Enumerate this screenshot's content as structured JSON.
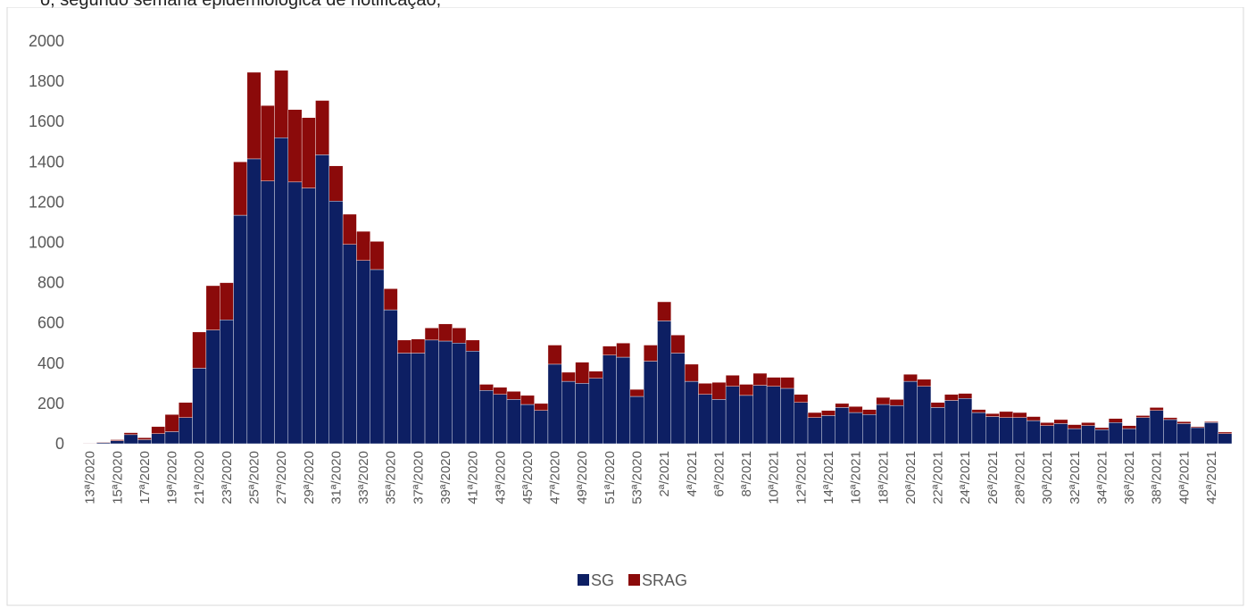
{
  "chart_data": {
    "type": "stacked-bar",
    "title": "o, segundo semana epidemiológica de notificação,",
    "categories": [
      "13ª/2020",
      null,
      "15ª/2020",
      null,
      "17ª/2020",
      null,
      "19ª/2020",
      null,
      "21ª/2020",
      null,
      "23ª/2020",
      null,
      "25ª/2020",
      null,
      "27ª/2020",
      null,
      "29ª/2020",
      null,
      "31ª/2020",
      null,
      "33ª/2020",
      null,
      "35ª/2020",
      null,
      "37ª/2020",
      null,
      "39ª/2020",
      null,
      "41ª/2020",
      null,
      "43ª/2020",
      null,
      "45ª/2020",
      null,
      "47ª/2020",
      null,
      "49ª/2020",
      null,
      "51ª/2020",
      null,
      "53ª/2020",
      null,
      "2ª/2021",
      null,
      "4ª/2021",
      null,
      "6ª/2021",
      null,
      "8ª/2021",
      null,
      "10ª/2021",
      null,
      "12ª/2021",
      null,
      "14ª/2021",
      null,
      "16ª/2021",
      null,
      "18ª/2021",
      null,
      "20ª/2021",
      null,
      "22ª/2021",
      null,
      "24ª/2021",
      null,
      "26ª/2021",
      null,
      "28ª/2021",
      null,
      "30ª/2021",
      null,
      "32ª/2021",
      null,
      "34ª/2021",
      null,
      "36ª/2021",
      null,
      "38ª/2021",
      null,
      "40ª/2021",
      null,
      "42ª/2021",
      null
    ],
    "series": [
      {
        "name": "SG",
        "color": "#0d1f63",
        "values": [
          2,
          5,
          15,
          45,
          20,
          50,
          60,
          130,
          375,
          565,
          615,
          1135,
          1415,
          1305,
          1520,
          1300,
          1270,
          1435,
          1205,
          990,
          910,
          865,
          665,
          450,
          450,
          515,
          510,
          500,
          460,
          265,
          245,
          220,
          195,
          165,
          395,
          310,
          300,
          325,
          440,
          430,
          235,
          410,
          610,
          450,
          310,
          245,
          220,
          285,
          240,
          290,
          285,
          275,
          205,
          130,
          140,
          180,
          155,
          145,
          195,
          190,
          310,
          285,
          180,
          215,
          225,
          155,
          135,
          130,
          130,
          115,
          90,
          100,
          75,
          90,
          70,
          105,
          75,
          130,
          165,
          120,
          100,
          80,
          105,
          50
        ]
      },
      {
        "name": "SRAG",
        "color": "#8b0a0a",
        "values": [
          2,
          3,
          5,
          10,
          10,
          35,
          85,
          75,
          180,
          220,
          185,
          265,
          430,
          375,
          335,
          360,
          350,
          270,
          175,
          150,
          145,
          140,
          105,
          65,
          70,
          60,
          85,
          75,
          55,
          30,
          35,
          40,
          45,
          35,
          95,
          45,
          105,
          35,
          45,
          70,
          35,
          80,
          95,
          90,
          85,
          55,
          85,
          55,
          55,
          60,
          45,
          55,
          40,
          25,
          25,
          20,
          30,
          25,
          35,
          30,
          35,
          35,
          25,
          30,
          25,
          15,
          15,
          30,
          25,
          20,
          15,
          20,
          20,
          15,
          10,
          20,
          15,
          10,
          15,
          10,
          10,
          5,
          5,
          8
        ]
      }
    ],
    "ylim": [
      0,
      2000
    ],
    "yticks": [
      0,
      200,
      400,
      600,
      800,
      1000,
      1200,
      1400,
      1600,
      1800,
      2000
    ],
    "grid": false,
    "legend": "bottom"
  }
}
